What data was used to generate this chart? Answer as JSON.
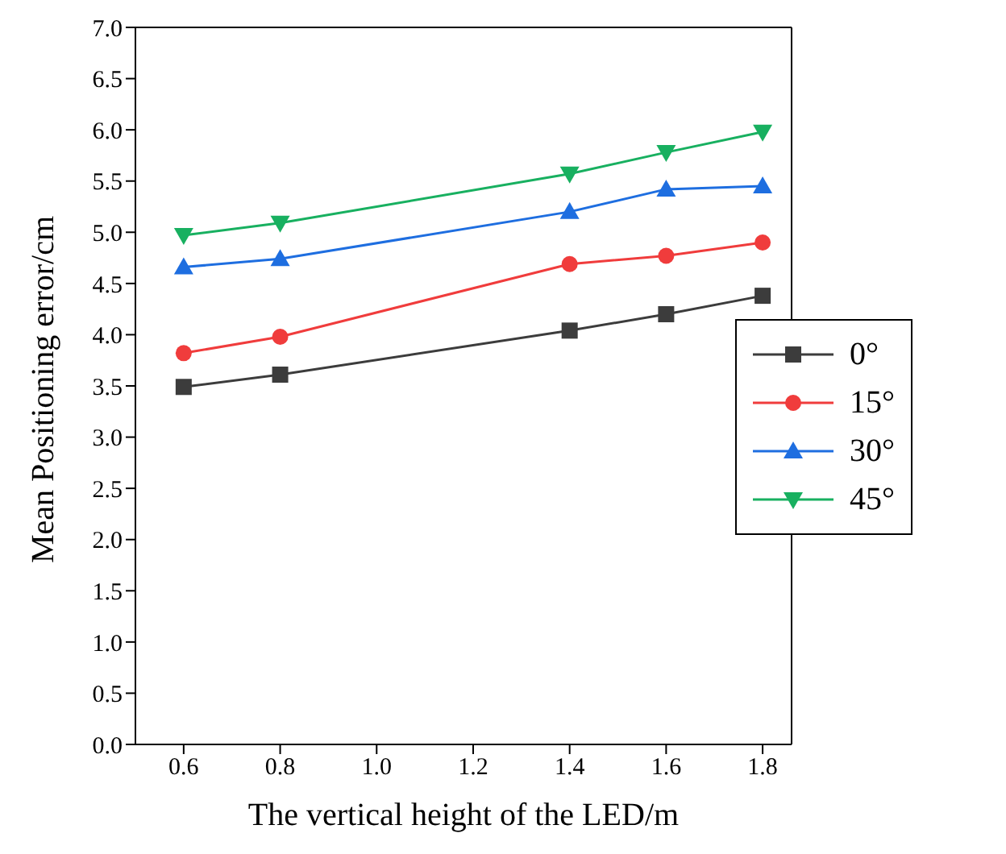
{
  "chart_data": {
    "type": "line",
    "xlabel": "The vertical height of the LED/m",
    "ylabel": "Mean Positioning error/cm",
    "x": [
      0.6,
      0.8,
      1.4,
      1.6,
      1.8
    ],
    "series": [
      {
        "name": "0°",
        "color": "#3c3c3c",
        "marker": "square",
        "values": [
          3.49,
          3.61,
          4.04,
          4.2,
          4.38
        ]
      },
      {
        "name": "15°",
        "color": "#f03c3c",
        "marker": "circle",
        "values": [
          3.82,
          3.98,
          4.69,
          4.77,
          4.9
        ]
      },
      {
        "name": "30°",
        "color": "#1e6ee0",
        "marker": "triangle",
        "values": [
          4.66,
          4.74,
          5.2,
          5.42,
          5.45
        ]
      },
      {
        "name": "45°",
        "color": "#18b060",
        "marker": "triangle-down",
        "values": [
          4.97,
          5.09,
          5.57,
          5.78,
          5.98
        ]
      }
    ],
    "xlim": [
      0.5,
      1.86
    ],
    "xticks": [
      {
        "value": 0.6,
        "label": "0.6"
      },
      {
        "value": 0.8,
        "label": "0.8"
      },
      {
        "value": 1.0,
        "label": "1.0"
      },
      {
        "value": 1.2,
        "label": "1.2"
      },
      {
        "value": 1.4,
        "label": "1.4"
      },
      {
        "value": 1.6,
        "label": "1.6"
      },
      {
        "value": 1.8,
        "label": "1.8"
      }
    ],
    "ylim": [
      0,
      7
    ],
    "yticks": [
      {
        "value": 0,
        "label": "0.0"
      },
      {
        "value": 0.5,
        "label": "0.5"
      },
      {
        "value": 1,
        "label": "1.0"
      },
      {
        "value": 1.5,
        "label": "1.5"
      },
      {
        "value": 2,
        "label": "2.0"
      },
      {
        "value": 2.5,
        "label": "2.5"
      },
      {
        "value": 3,
        "label": "3.0"
      },
      {
        "value": 3.5,
        "label": "3.5"
      },
      {
        "value": 4,
        "label": "4.0"
      },
      {
        "value": 4.5,
        "label": "4.5"
      },
      {
        "value": 5,
        "label": "5.0"
      },
      {
        "value": 5.5,
        "label": "5.5"
      },
      {
        "value": 6,
        "label": "6.0"
      },
      {
        "value": 6.5,
        "label": "6.5"
      },
      {
        "value": 7,
        "label": "7.0"
      }
    ],
    "grid": false,
    "legend": "right"
  }
}
